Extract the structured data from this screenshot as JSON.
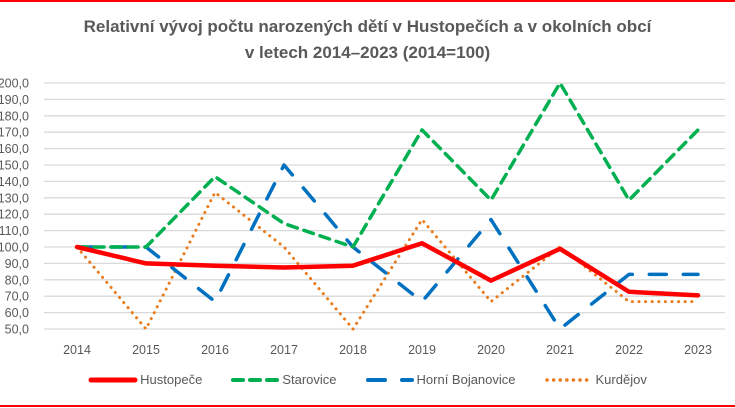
{
  "chart_data": {
    "type": "line",
    "title": "Relativní vývoj počtu narozených dětí v Hustopečích a v okolních obcí",
    "subtitle": "v letech 2014–2023 (2014=100)",
    "categories": [
      "2014",
      "2015",
      "2016",
      "2017",
      "2018",
      "2019",
      "2020",
      "2021",
      "2022",
      "2023"
    ],
    "ylim": [
      50,
      200
    ],
    "yticks": [
      "50,0",
      "60,0",
      "70,0",
      "80,0",
      "90,0",
      "100,0",
      "110,0",
      "120,0",
      "130,0",
      "140,0",
      "150,0",
      "160,0",
      "170,0",
      "180,0",
      "190,0",
      "200,0"
    ],
    "grid": true,
    "legend": "bottom",
    "series": [
      {
        "name": "Hustopeče",
        "color": "#ff0000",
        "style": "solid",
        "values": [
          100,
          90.0,
          88.6,
          87.5,
          88.6,
          102.3,
          79.5,
          98.9,
          72.7,
          70.5
        ]
      },
      {
        "name": "Starovice",
        "color": "#00b050",
        "style": "dash",
        "values": [
          100,
          100,
          142.9,
          114.3,
          100,
          171.4,
          128.6,
          200,
          128.6,
          171.4
        ]
      },
      {
        "name": "Horní Bojanovice",
        "color": "#0070c0",
        "style": "longdash",
        "values": [
          100,
          100,
          66.7,
          150,
          100,
          66.7,
          116.7,
          50,
          83.3,
          83.3
        ]
      },
      {
        "name": "Kurdějov",
        "color": "#e97b1d",
        "style": "dot",
        "values": [
          100,
          50,
          133.3,
          100,
          50,
          116.7,
          66.7,
          100,
          66.7,
          66.7
        ]
      }
    ]
  }
}
